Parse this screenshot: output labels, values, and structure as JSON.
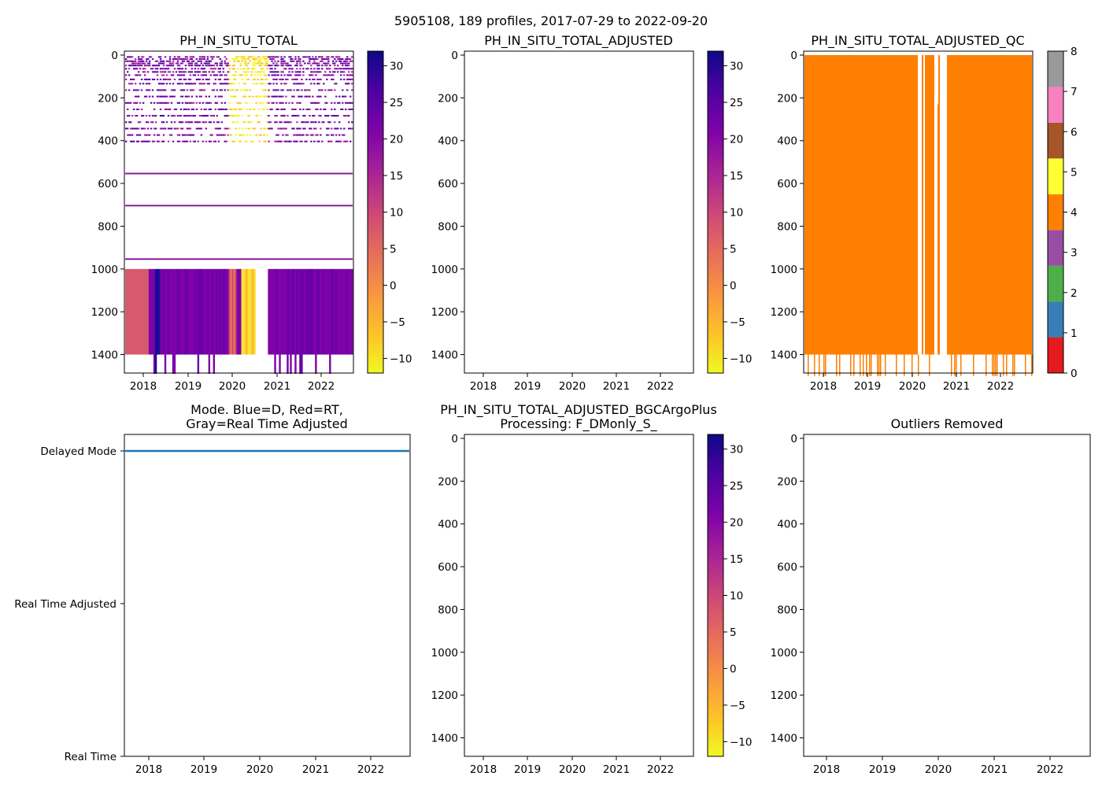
{
  "figure": {
    "suptitle": "5905108, 189 profiles, 2017-07-29 to 2022-09-20"
  },
  "chart_data": [
    {
      "id": "raw",
      "type": "heatmap",
      "title": "PH_IN_SITU_TOTAL",
      "x_ticks": [
        "2018",
        "2019",
        "2020",
        "2021",
        "2022"
      ],
      "y_ticks": [
        "0",
        "200",
        "400",
        "600",
        "800",
        "1000",
        "1200",
        "1400"
      ],
      "ylim": [
        1500,
        0
      ],
      "xlim": [
        2017.57,
        2022.72
      ],
      "colormap": "plasma_r",
      "colorbar": {
        "ticks": [
          "30",
          "25",
          "20",
          "15",
          "10",
          "5",
          "0",
          "−10"
        ],
        "tick_values": [
          30,
          25,
          20,
          15,
          10,
          5,
          0,
          -10
        ],
        "extra_ticks": [
          "−5"
        ],
        "extra_values": [
          -5
        ],
        "range": [
          -12,
          32
        ]
      },
      "colorbar_ticks_full": [
        "30",
        "25",
        "20",
        "15",
        "10",
        "5",
        "0",
        "−5",
        "−10"
      ]
    },
    {
      "id": "adjusted",
      "type": "heatmap",
      "title": "PH_IN_SITU_TOTAL_ADJUSTED",
      "x_ticks": [
        "2018",
        "2019",
        "2020",
        "2021",
        "2022"
      ],
      "y_ticks": [
        "0",
        "200",
        "400",
        "600",
        "800",
        "1000",
        "1200",
        "1400"
      ],
      "ylim": [
        1500,
        0
      ],
      "colormap": "plasma_r",
      "colorbar_ticks_full": [
        "30",
        "25",
        "20",
        "15",
        "10",
        "5",
        "0",
        "−5",
        "−10"
      ]
    },
    {
      "id": "qc",
      "type": "heatmap",
      "title": "PH_IN_SITU_TOTAL_ADJUSTED_QC",
      "x_ticks": [
        "2018",
        "2019",
        "2020",
        "2021",
        "2022"
      ],
      "y_ticks": [
        "0",
        "200",
        "400",
        "600",
        "800",
        "1000",
        "1200",
        "1400"
      ],
      "ylim": [
        1500,
        0
      ],
      "dominant_qc_value": 4,
      "colorbar_ticks": [
        "0",
        "1",
        "2",
        "3",
        "4",
        "5",
        "6",
        "7",
        "8"
      ],
      "qc_colors": [
        "#e41a1c",
        "#377eb8",
        "#4daf4a",
        "#984ea3",
        "#ff7f00",
        "#ffff33",
        "#a65628",
        "#f781bf",
        "#999999"
      ]
    },
    {
      "id": "mode",
      "type": "line",
      "title_line1": "Mode. Blue=D, Red=RT,",
      "title_line2": "Gray=Real Time Adjusted",
      "x_ticks": [
        "2018",
        "2019",
        "2020",
        "2021",
        "2022"
      ],
      "y_categories": [
        "Delayed Mode",
        "Real Time Adjusted",
        "Real Time"
      ],
      "series": [
        {
          "name": "Delayed Mode",
          "color": "#1f77b4",
          "x": [
            2017.57,
            2022.72
          ],
          "y": [
            2,
            2
          ]
        }
      ]
    },
    {
      "id": "bgc",
      "type": "heatmap",
      "title_line1": "PH_IN_SITU_TOTAL_ADJUSTED_BGCArgoPlus",
      "title_line2": "Processing: F_DMonly_S_",
      "x_ticks": [
        "2018",
        "2019",
        "2020",
        "2021",
        "2022"
      ],
      "y_ticks": [
        "0",
        "200",
        "400",
        "600",
        "800",
        "1000",
        "1200",
        "1400"
      ],
      "ylim": [
        1500,
        0
      ],
      "colormap": "plasma_r",
      "colorbar_ticks_full": [
        "30",
        "25",
        "20",
        "15",
        "10",
        "5",
        "0",
        "−5",
        "−10"
      ]
    },
    {
      "id": "outliers",
      "type": "heatmap",
      "title": "Outliers Removed",
      "x_ticks": [
        "2018",
        "2019",
        "2020",
        "2021",
        "2022"
      ],
      "y_ticks": [
        "0",
        "200",
        "400",
        "600",
        "800",
        "1000",
        "1200",
        "1400"
      ],
      "ylim": [
        1500,
        0
      ]
    }
  ]
}
